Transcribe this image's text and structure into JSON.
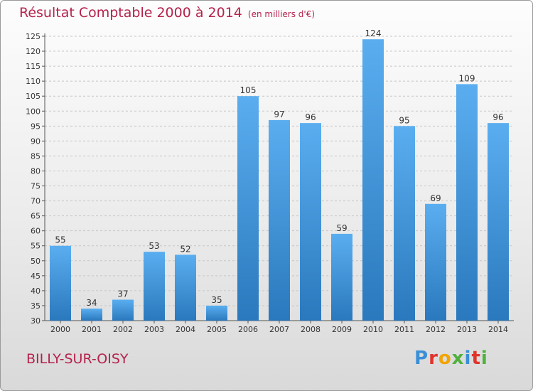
{
  "chart_data": {
    "type": "bar",
    "title": "Résultat Comptable 2000 à 2014",
    "subtitle": "(en milliers d'€)",
    "xlabel": "",
    "ylabel": "",
    "categories": [
      "2000",
      "2001",
      "2002",
      "2003",
      "2004",
      "2005",
      "2006",
      "2007",
      "2008",
      "2009",
      "2010",
      "2011",
      "2012",
      "2013",
      "2014"
    ],
    "values": [
      55,
      34,
      37,
      53,
      52,
      35,
      105,
      97,
      96,
      59,
      124,
      95,
      69,
      109,
      96
    ],
    "ylim": [
      30,
      125
    ],
    "yticks": [
      30,
      35,
      40,
      45,
      50,
      55,
      60,
      65,
      70,
      75,
      80,
      85,
      90,
      95,
      100,
      105,
      110,
      115,
      120,
      125
    ],
    "grid": true,
    "bar_color": "#3a8fd6"
  },
  "footer": {
    "location": "BILLY-SUR-OISY",
    "logo_text": "Proxiti"
  },
  "colors": {
    "title": "#b5224c",
    "logo": [
      "#3a8fd6",
      "#e0342b",
      "#f2a400",
      "#4fb13c",
      "#3a8fd6",
      "#e0342b",
      "#4fb13c"
    ]
  }
}
